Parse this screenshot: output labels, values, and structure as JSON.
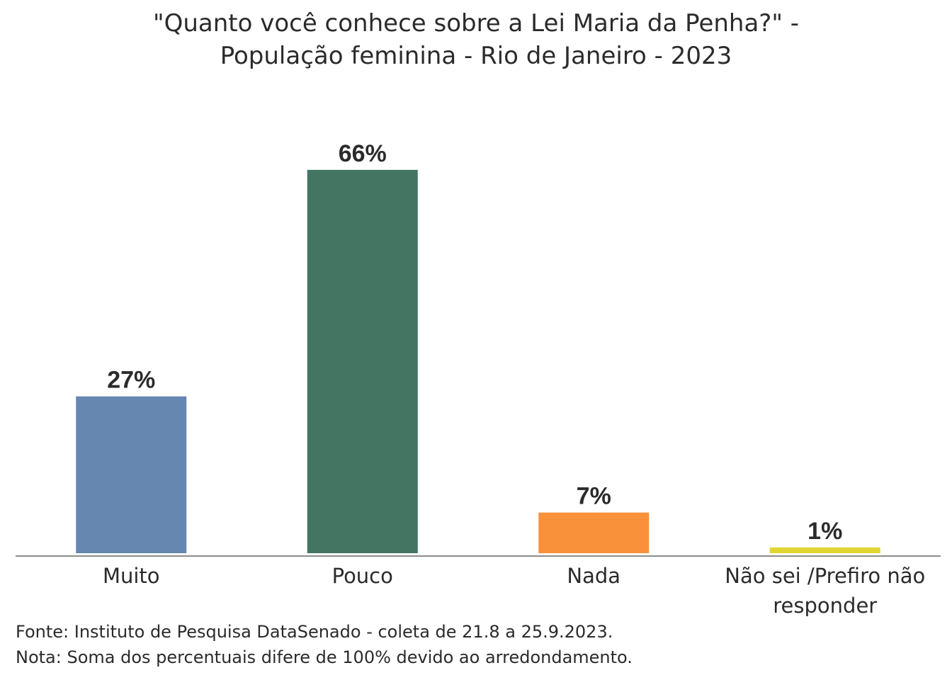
{
  "chart_data": {
    "type": "bar",
    "title_lines": [
      "\"Quanto você conhece sobre a Lei Maria da Penha?\" -",
      "População feminina - Rio de Janeiro - 2023"
    ],
    "categories": [
      [
        "Muito"
      ],
      [
        "Pouco"
      ],
      [
        "Nada"
      ],
      [
        "Não sei /Prefiro não",
        "responder"
      ]
    ],
    "values": [
      27,
      66,
      7,
      1
    ],
    "value_labels": [
      "27%",
      "66%",
      "7%",
      "1%"
    ],
    "colors": [
      "#6688b0",
      "#447563",
      "#f9913b",
      "#e1d534"
    ],
    "ylim": [
      0,
      100
    ],
    "grid": false,
    "legend": "none"
  },
  "footer": {
    "source": "Fonte: Instituto de Pesquisa DataSenado - coleta de 21.8 a 25.9.2023.",
    "note": "Nota: Soma dos percentuais difere de 100% devido ao arredondamento."
  }
}
